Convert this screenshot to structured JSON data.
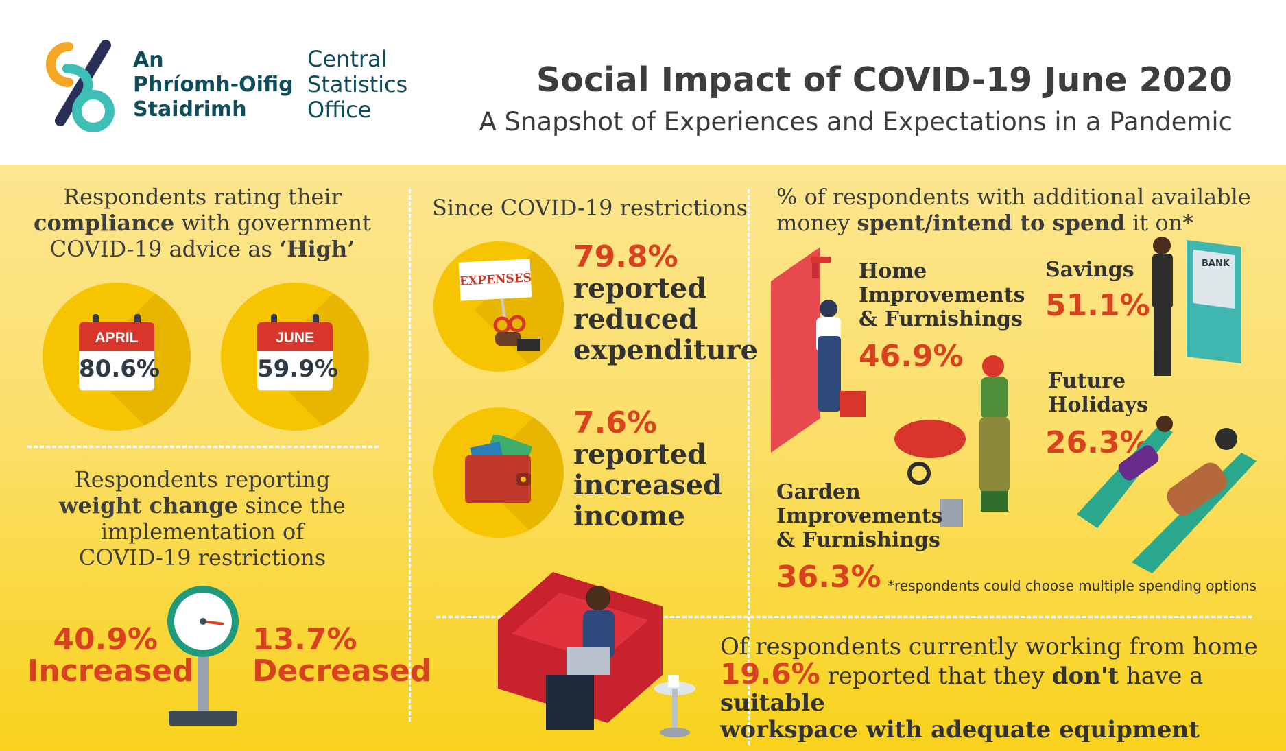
{
  "header": {
    "logo_irish_lines": [
      "An",
      "Phríomh-Oifig",
      "Staidrimh"
    ],
    "logo_english_lines": [
      "Central",
      "Statistics",
      "Office"
    ],
    "title": "Social Impact of COVID-19 June 2020",
    "subtitle": "A Snapshot of Experiences and Expectations in a Pandemic"
  },
  "compliance": {
    "heading_pre": "Respondents rating their",
    "heading_bold1": "compliance",
    "heading_mid": "with government",
    "heading_line3": "COVID-19 advice as",
    "heading_bold2": "‘High’",
    "april_label": "APRIL",
    "april_value": "80.6%",
    "june_label": "JUNE",
    "june_value": "59.9%"
  },
  "weight": {
    "heading_line1": "Respondents reporting",
    "heading_bold": "weight change",
    "heading_line2_rest": "since the",
    "heading_line3": "implementation of",
    "heading_line4": "COVID-19 restrictions",
    "increased_value": "40.9%",
    "increased_label": "Increased",
    "decreased_value": "13.7%",
    "decreased_label": "Decreased"
  },
  "restrictions": {
    "heading": "Since COVID-19 restrictions",
    "expenses_sign": "EXPENSES",
    "reduced_value": "79.8%",
    "reduced_lines": [
      "reported",
      "reduced",
      "expenditure"
    ],
    "income_value": "7.6%",
    "income_lines": [
      "reported",
      "increased",
      "income"
    ]
  },
  "spending": {
    "heading_line1": "% of respondents with additional available",
    "heading_pre2": "money",
    "heading_bold": "spent/intend to spend",
    "heading_post2": "it on*",
    "home_lines": [
      "Home",
      "Improvements",
      "& Furnishings"
    ],
    "home_value": "46.9%",
    "savings_label": "Savings",
    "savings_value": "51.1%",
    "bank_sign": "BANK",
    "holidays_lines": [
      "Future",
      "Holidays"
    ],
    "holidays_value": "26.3%",
    "garden_lines": [
      "Garden",
      "Improvements",
      "& Furnishings"
    ],
    "garden_value": "36.3%",
    "footnote": "*respondents could choose multiple spending options"
  },
  "workspace": {
    "line1": "Of respondents currently working from home",
    "value": "19.6%",
    "line2_mid": "reported that they",
    "line2_bold1": "don't",
    "line2_post": "have a",
    "line2_bold2": "suitable",
    "line3_bold": "workspace with adequate equipment"
  },
  "colors": {
    "accent_red": "#d9421e",
    "circle_yellow": "#f6c400",
    "logo_teal": "#0f4c5c",
    "background_yellow": "#fbdf6a"
  }
}
